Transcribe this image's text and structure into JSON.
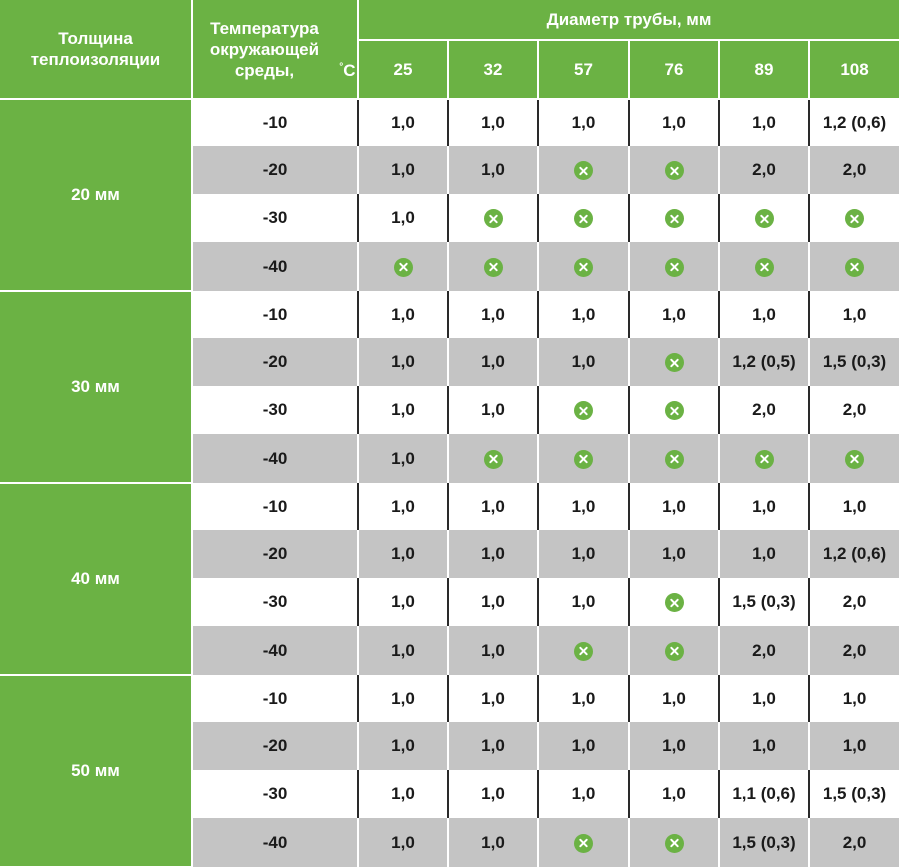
{
  "header": {
    "thickness_label": "Толщина теплоизоляции",
    "temp_label": "Температура окружающей среды,",
    "temp_degree": "°",
    "temp_unit": "C",
    "diameter_label": "Диаметр трубы, мм",
    "diameters": [
      "25",
      "32",
      "57",
      "76",
      "89",
      "108"
    ]
  },
  "icon_names": {
    "not_applicable": "x-circle-icon"
  },
  "colors": {
    "accent": "#6bb244",
    "gray_row": "#c4c4c4"
  },
  "groups": [
    {
      "thickness": "20 мм",
      "rows": [
        {
          "temp": "-10",
          "values": [
            "1,0",
            "1,0",
            "1,0",
            "1,0",
            "1,0",
            "1,2 (0,6)"
          ]
        },
        {
          "temp": "-20",
          "values": [
            "1,0",
            "1,0",
            "x",
            "x",
            "2,0",
            "2,0"
          ]
        },
        {
          "temp": "-30",
          "values": [
            "1,0",
            "x",
            "x",
            "x",
            "x",
            "x"
          ]
        },
        {
          "temp": "-40",
          "values": [
            "x",
            "x",
            "x",
            "x",
            "x",
            "x"
          ]
        }
      ]
    },
    {
      "thickness": "30 мм",
      "rows": [
        {
          "temp": "-10",
          "values": [
            "1,0",
            "1,0",
            "1,0",
            "1,0",
            "1,0",
            "1,0"
          ]
        },
        {
          "temp": "-20",
          "values": [
            "1,0",
            "1,0",
            "1,0",
            "x",
            "1,2 (0,5)",
            "1,5 (0,3)"
          ]
        },
        {
          "temp": "-30",
          "values": [
            "1,0",
            "1,0",
            "x",
            "x",
            "2,0",
            "2,0"
          ]
        },
        {
          "temp": "-40",
          "values": [
            "1,0",
            "x",
            "x",
            "x",
            "x",
            "x"
          ]
        }
      ]
    },
    {
      "thickness": "40 мм",
      "rows": [
        {
          "temp": "-10",
          "values": [
            "1,0",
            "1,0",
            "1,0",
            "1,0",
            "1,0",
            "1,0"
          ]
        },
        {
          "temp": "-20",
          "values": [
            "1,0",
            "1,0",
            "1,0",
            "1,0",
            "1,0",
            "1,2 (0,6)"
          ]
        },
        {
          "temp": "-30",
          "values": [
            "1,0",
            "1,0",
            "1,0",
            "x",
            "1,5 (0,3)",
            "2,0"
          ]
        },
        {
          "temp": "-40",
          "values": [
            "1,0",
            "1,0",
            "x",
            "x",
            "2,0",
            "2,0"
          ]
        }
      ]
    },
    {
      "thickness": "50 мм",
      "rows": [
        {
          "temp": "-10",
          "values": [
            "1,0",
            "1,0",
            "1,0",
            "1,0",
            "1,0",
            "1,0"
          ]
        },
        {
          "temp": "-20",
          "values": [
            "1,0",
            "1,0",
            "1,0",
            "1,0",
            "1,0",
            "1,0"
          ]
        },
        {
          "temp": "-30",
          "values": [
            "1,0",
            "1,0",
            "1,0",
            "1,0",
            "1,1 (0,6)",
            "1,5 (0,3)"
          ]
        },
        {
          "temp": "-40",
          "values": [
            "1,0",
            "1,0",
            "x",
            "x",
            "1,5 (0,3)",
            "2,0"
          ]
        }
      ]
    }
  ]
}
